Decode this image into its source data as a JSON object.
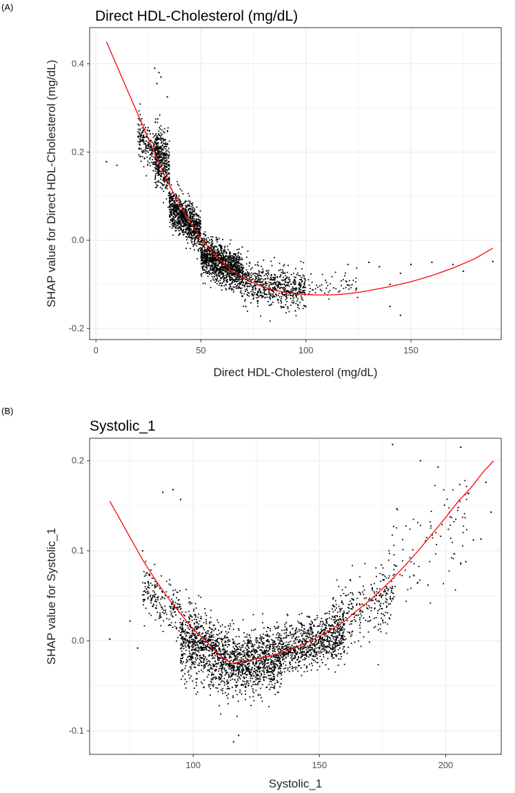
{
  "chart_data": [
    {
      "panel": "(A)",
      "type": "scatter",
      "title": "Direct HDL-Cholesterol (mg/dL)",
      "xlabel": "Direct HDL-Cholesterol (mg/dL)",
      "ylabel": "SHAP value for  Direct HDL-Cholesterol (mg/dL)",
      "xlim": [
        -3,
        193
      ],
      "ylim": [
        -0.225,
        0.482
      ],
      "xticks": [
        0,
        50,
        100,
        150
      ],
      "xtick_labels": [
        "0",
        "50",
        "100",
        "150"
      ],
      "yticks": [
        -0.2,
        0.0,
        0.2,
        0.4
      ],
      "ytick_labels": [
        "-0.2",
        "0.0",
        "0.2",
        "0.4"
      ],
      "grid": true,
      "legend": "none",
      "point_color": "#000000",
      "trend_color": "#ff0000",
      "trend_line": {
        "x": [
          5,
          10,
          15,
          20,
          25,
          30,
          35,
          40,
          45,
          50,
          55,
          60,
          65,
          70,
          75,
          80,
          85,
          90,
          95,
          100,
          105,
          110,
          115,
          120,
          125,
          130,
          140,
          150,
          160,
          170,
          180,
          189
        ],
        "y": [
          0.45,
          0.395,
          0.34,
          0.285,
          0.23,
          0.175,
          0.125,
          0.08,
          0.04,
          0.005,
          -0.025,
          -0.05,
          -0.07,
          -0.085,
          -0.097,
          -0.106,
          -0.113,
          -0.118,
          -0.121,
          -0.123,
          -0.124,
          -0.124,
          -0.123,
          -0.121,
          -0.118,
          -0.114,
          -0.105,
          -0.094,
          -0.08,
          -0.063,
          -0.043,
          -0.018
        ]
      },
      "point_clusters": [
        {
          "x_range": [
            20,
            30
          ],
          "y_center": 0.2,
          "y_spread": 0.04,
          "count": 220
        },
        {
          "x_range": [
            28,
            35
          ],
          "y_center": 0.2,
          "y_spread": 0.06,
          "count": 400
        },
        {
          "x_range": [
            35,
            50
          ],
          "y_center": 0.035,
          "y_spread": 0.04,
          "count": 900
        },
        {
          "x_range": [
            50,
            70
          ],
          "y_center": -0.06,
          "y_spread": 0.04,
          "count": 1200
        },
        {
          "x_range": [
            70,
            100
          ],
          "y_center": -0.1,
          "y_spread": 0.045,
          "count": 600
        },
        {
          "x_range": [
            100,
            125
          ],
          "y_center": -0.09,
          "y_spread": 0.03,
          "count": 60
        }
      ],
      "outlier_points": [
        {
          "x": 5,
          "y": 0.178
        },
        {
          "x": 10,
          "y": 0.17
        },
        {
          "x": 28,
          "y": 0.39
        },
        {
          "x": 30,
          "y": 0.38
        },
        {
          "x": 31,
          "y": 0.37
        },
        {
          "x": 29,
          "y": 0.355
        },
        {
          "x": 34,
          "y": 0.325
        },
        {
          "x": 135,
          "y": -0.06
        },
        {
          "x": 140,
          "y": -0.1
        },
        {
          "x": 145,
          "y": -0.075
        },
        {
          "x": 145,
          "y": -0.17
        },
        {
          "x": 150,
          "y": -0.055
        },
        {
          "x": 160,
          "y": -0.05
        },
        {
          "x": 170,
          "y": -0.055
        },
        {
          "x": 175,
          "y": -0.07
        },
        {
          "x": 189,
          "y": -0.048
        },
        {
          "x": 120,
          "y": -0.055
        },
        {
          "x": 130,
          "y": -0.05
        },
        {
          "x": 95,
          "y": -0.16
        },
        {
          "x": 140,
          "y": -0.15
        }
      ]
    },
    {
      "panel": "(B)",
      "type": "scatter",
      "title": "Systolic_1",
      "xlabel": "Systolic_1",
      "ylabel": "SHAP value for Systolic_1",
      "xlim": [
        59,
        222
      ],
      "ylim": [
        -0.126,
        0.225
      ],
      "xticks": [
        100,
        150,
        200
      ],
      "xtick_labels": [
        "100",
        "150",
        "200"
      ],
      "yticks": [
        -0.1,
        0.0,
        0.1,
        0.2
      ],
      "ytick_labels": [
        "-0.1",
        "0.0",
        "0.1",
        "0.2"
      ],
      "grid": true,
      "legend": "none",
      "point_color": "#000000",
      "trend_color": "#ff0000",
      "trend_line": {
        "x": [
          67,
          75,
          80,
          85,
          90,
          95,
          100,
          105,
          110,
          115,
          120,
          125,
          130,
          135,
          140,
          145,
          150,
          155,
          160,
          165,
          170,
          175,
          180,
          185,
          190,
          195,
          200,
          205,
          210,
          215,
          219
        ],
        "y": [
          0.155,
          0.115,
          0.09,
          0.068,
          0.048,
          0.03,
          0.013,
          0.0,
          -0.015,
          -0.025,
          -0.023,
          -0.02,
          -0.017,
          -0.013,
          -0.008,
          -0.002,
          0.005,
          0.013,
          0.022,
          0.034,
          0.045,
          0.058,
          0.072,
          0.087,
          0.103,
          0.12,
          0.137,
          0.155,
          0.17,
          0.188,
          0.2
        ]
      },
      "point_clusters": [
        {
          "x_range": [
            80,
            95
          ],
          "y_center": 0.03,
          "y_spread": 0.025,
          "count": 200
        },
        {
          "x_range": [
            95,
            115
          ],
          "y_center": -0.02,
          "y_spread": 0.035,
          "count": 900
        },
        {
          "x_range": [
            115,
            135
          ],
          "y_center": -0.025,
          "y_spread": 0.03,
          "count": 900
        },
        {
          "x_range": [
            135,
            160
          ],
          "y_center": -0.005,
          "y_spread": 0.025,
          "count": 800
        },
        {
          "x_range": [
            155,
            180
          ],
          "y_center": 0.035,
          "y_spread": 0.035,
          "count": 300
        },
        {
          "x_range": [
            178,
            210
          ],
          "y_center": 0.11,
          "y_spread": 0.05,
          "count": 90
        }
      ],
      "outlier_points": [
        {
          "x": 67,
          "y": 0.002
        },
        {
          "x": 88,
          "y": 0.165
        },
        {
          "x": 92,
          "y": 0.168
        },
        {
          "x": 95,
          "y": 0.157
        },
        {
          "x": 80,
          "y": 0.1
        },
        {
          "x": 75,
          "y": 0.022
        },
        {
          "x": 78,
          "y": -0.008
        },
        {
          "x": 116,
          "y": -0.112
        },
        {
          "x": 118,
          "y": -0.105
        },
        {
          "x": 179,
          "y": 0.218
        },
        {
          "x": 206,
          "y": 0.215
        },
        {
          "x": 218,
          "y": 0.143
        },
        {
          "x": 216,
          "y": 0.176
        },
        {
          "x": 211,
          "y": 0.112
        },
        {
          "x": 214,
          "y": 0.113
        },
        {
          "x": 190,
          "y": 0.2
        },
        {
          "x": 197,
          "y": 0.193
        },
        {
          "x": 205,
          "y": 0.148
        },
        {
          "x": 208,
          "y": 0.088
        },
        {
          "x": 193,
          "y": 0.062
        }
      ]
    }
  ]
}
